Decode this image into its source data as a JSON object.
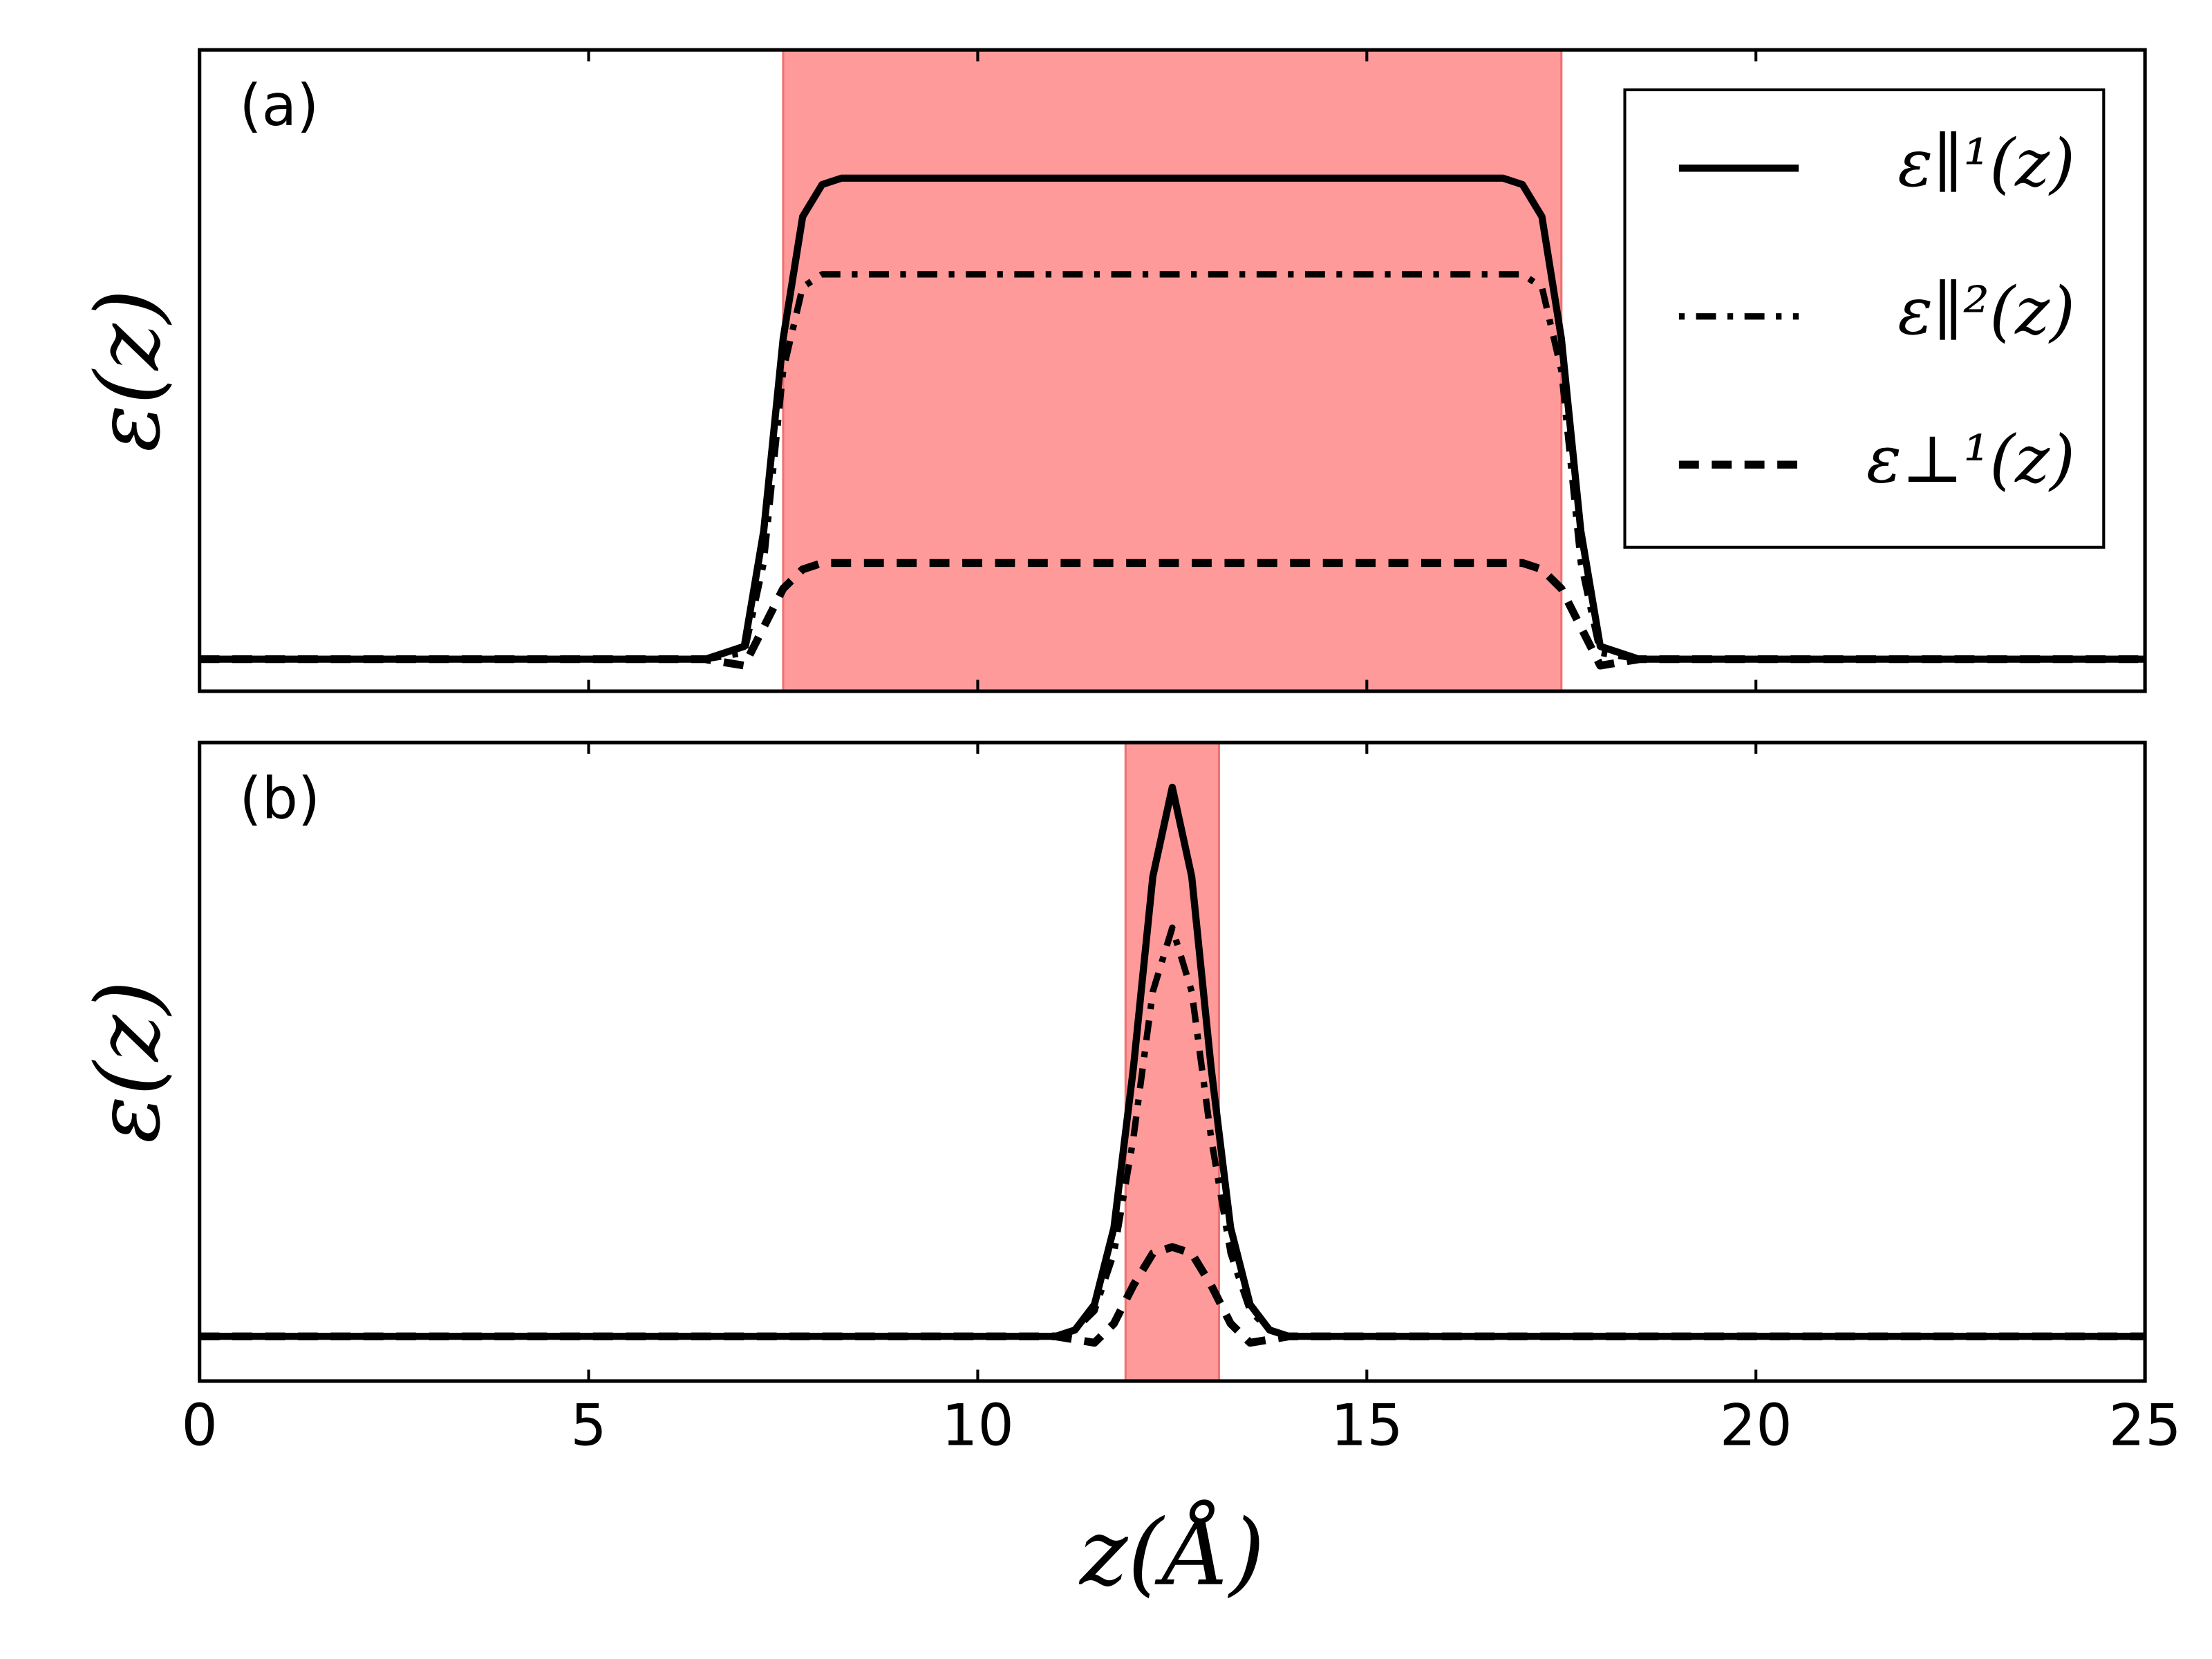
{
  "chart_data": [
    {
      "type": "line",
      "label": "(a)",
      "ylabel": "ε(z)",
      "x": [
        0,
        6.5,
        7,
        7.25,
        7.5,
        7.75,
        8,
        8.25,
        8.5,
        12.5,
        16.5,
        16.75,
        17,
        17.25,
        17.5,
        17.75,
        18,
        18.5,
        25
      ],
      "series": [
        {
          "name": "ε∥¹(z)",
          "color": "#000000",
          "linestyle": "solid",
          "values": [
            0.05,
            0.05,
            0.07,
            0.25,
            0.55,
            0.74,
            0.79,
            0.8,
            0.8,
            0.8,
            0.8,
            0.8,
            0.79,
            0.74,
            0.55,
            0.25,
            0.07,
            0.05,
            0.05
          ]
        },
        {
          "name": "ε∥²(z)",
          "color": "#000000",
          "linestyle": "dashdot",
          "values": [
            0.05,
            0.05,
            0.06,
            0.2,
            0.5,
            0.63,
            0.65,
            0.65,
            0.65,
            0.65,
            0.65,
            0.65,
            0.65,
            0.63,
            0.5,
            0.2,
            0.06,
            0.05,
            0.05
          ]
        },
        {
          "name": "ε⊥¹(z)",
          "color": "#000000",
          "linestyle": "dashed",
          "values": [
            0.05,
            0.05,
            0.04,
            0.1,
            0.16,
            0.19,
            0.2,
            0.2,
            0.2,
            0.2,
            0.2,
            0.2,
            0.2,
            0.19,
            0.16,
            0.1,
            0.04,
            0.05,
            0.05
          ]
        }
      ],
      "span": [
        7.5,
        17.5
      ],
      "span_color": "#ff9a9a",
      "xlim": [
        0,
        25
      ],
      "ylim": [
        0,
        1
      ],
      "legend": "upper right"
    },
    {
      "type": "line",
      "label": "(b)",
      "ylabel": "ε(z)",
      "xlabel": "z(Å)",
      "x": [
        0,
        10.5,
        11,
        11.25,
        11.5,
        11.75,
        12,
        12.25,
        12.5,
        12.75,
        13,
        13.25,
        13.5,
        13.75,
        14,
        14.5,
        25
      ],
      "series": [
        {
          "color": "#000000",
          "linestyle": "solid",
          "values": [
            0.07,
            0.07,
            0.07,
            0.08,
            0.12,
            0.24,
            0.49,
            0.79,
            0.93,
            0.79,
            0.49,
            0.24,
            0.12,
            0.08,
            0.07,
            0.07,
            0.07
          ]
        },
        {
          "color": "#000000",
          "linestyle": "dashdot",
          "values": [
            0.07,
            0.07,
            0.07,
            0.08,
            0.11,
            0.2,
            0.38,
            0.61,
            0.71,
            0.61,
            0.38,
            0.2,
            0.11,
            0.08,
            0.07,
            0.07,
            0.07
          ]
        },
        {
          "color": "#000000",
          "linestyle": "dashed",
          "values": [
            0.07,
            0.07,
            0.07,
            0.065,
            0.06,
            0.09,
            0.15,
            0.2,
            0.21,
            0.2,
            0.15,
            0.09,
            0.06,
            0.065,
            0.07,
            0.07,
            0.07
          ]
        }
      ],
      "span": [
        11.9,
        13.1
      ],
      "span_color": "#ff9a9a",
      "xlim": [
        0,
        25
      ],
      "ylim": [
        0,
        1
      ],
      "xticks": [
        0,
        5,
        10,
        15,
        20,
        25
      ]
    }
  ]
}
